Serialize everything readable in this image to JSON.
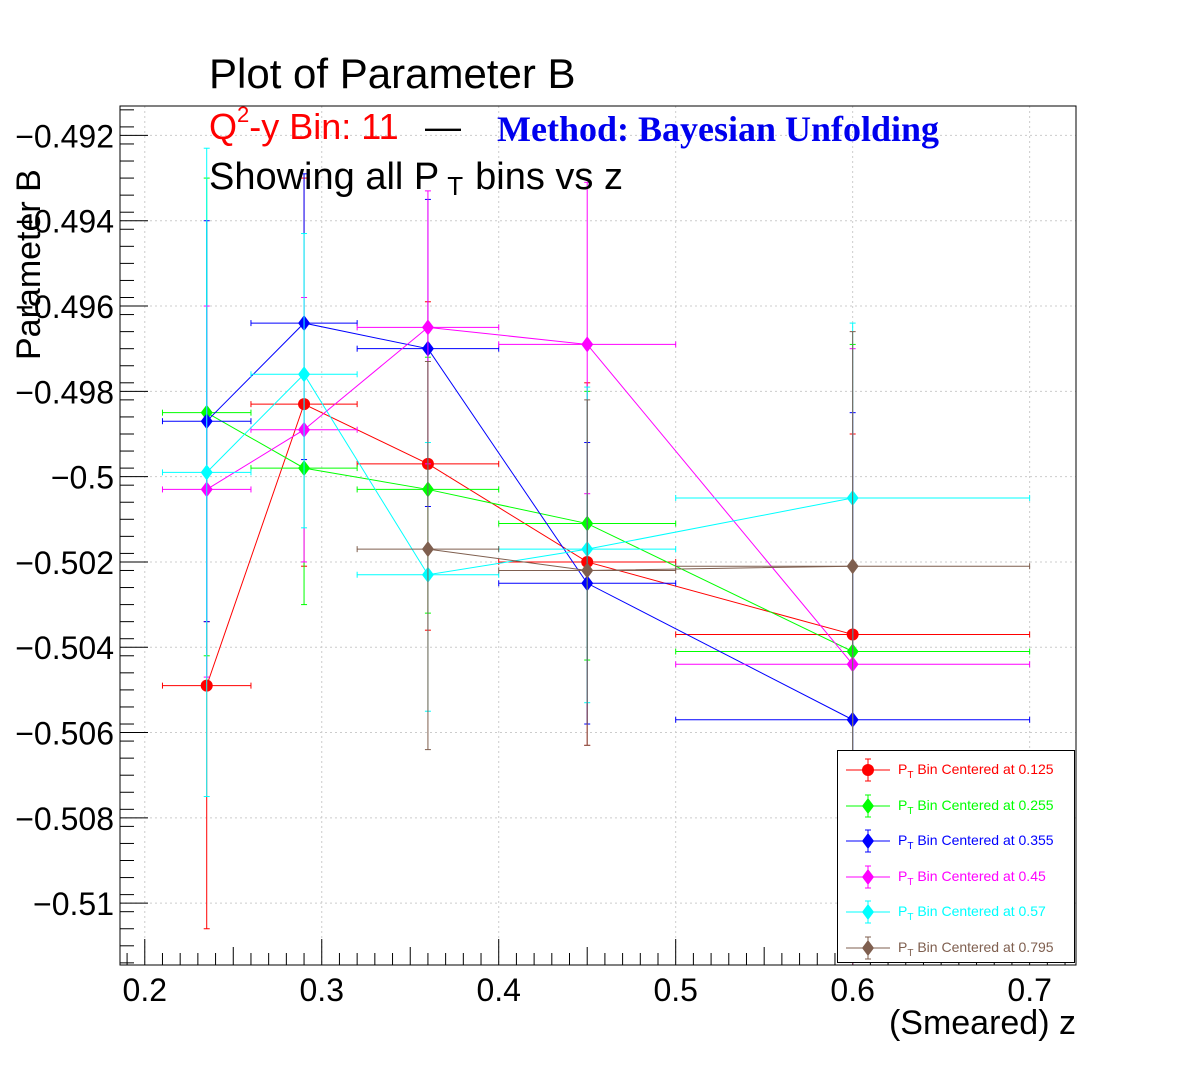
{
  "titles": {
    "main": "Plot of Parameter B",
    "bin_prefix": "Q",
    "bin_sup": "2",
    "bin_suffix": "-y Bin: 11",
    "dash": "—",
    "method": "Method: Bayesian Unfolding",
    "show_prefix": "Showing all P",
    "show_sub": "T",
    "show_suffix": "bins vs z"
  },
  "legend_prefix": "P",
  "legend_sub": "T",
  "chart_data": {
    "type": "scatter",
    "xlabel": "(Smeared) z",
    "ylabel": "Parameter B",
    "xlim": [
      0.186,
      0.7262
    ],
    "ylim": [
      -0.51145,
      -0.49131
    ],
    "x_ticks": [
      0.2,
      0.3,
      0.4,
      0.5,
      0.6,
      0.7
    ],
    "x_tick_labels": [
      "0.2",
      "0.3",
      "0.4",
      "0.5",
      "0.6",
      "0.7"
    ],
    "y_ticks": [
      -0.492,
      -0.494,
      -0.496,
      -0.498,
      -0.5,
      -0.502,
      -0.504,
      -0.506,
      -0.508,
      -0.51
    ],
    "y_tick_labels": [
      "−0.492",
      "−0.494",
      "−0.496",
      "−0.498",
      "−0.5",
      "−0.502",
      "−0.504",
      "−0.506",
      "−0.508",
      "−0.51"
    ],
    "grid": true,
    "legend_position": "bottom-right",
    "series": [
      {
        "name": "Bin Centered at 0.125",
        "color": "#ff0000",
        "marker": "circle",
        "points": [
          {
            "x": 0.235,
            "y": -0.5049,
            "xlo": 0.21,
            "xhi": 0.26,
            "ylo": -0.5106,
            "yhi": -0.5034
          },
          {
            "x": 0.29,
            "y": -0.4983,
            "xlo": 0.26,
            "xhi": 0.32,
            "ylo": -0.5021,
            "yhi": -0.493
          },
          {
            "x": 0.36,
            "y": -0.4997,
            "xlo": 0.32,
            "xhi": 0.4,
            "ylo": -0.5036,
            "yhi": -0.4959
          },
          {
            "x": 0.45,
            "y": -0.502,
            "xlo": 0.4,
            "xhi": 0.5,
            "ylo": -0.5063,
            "yhi": -0.4978
          },
          {
            "x": 0.6,
            "y": -0.5037,
            "xlo": 0.5,
            "xhi": 0.7,
            "ylo": -0.5115,
            "yhi": -0.499
          }
        ]
      },
      {
        "name": "Bin Centered at 0.255",
        "color": "#00ff00",
        "marker": "diamond",
        "points": [
          {
            "x": 0.235,
            "y": -0.4985,
            "xlo": 0.21,
            "xhi": 0.26,
            "ylo": -0.5042,
            "yhi": -0.493
          },
          {
            "x": 0.29,
            "y": -0.4998,
            "xlo": 0.26,
            "xhi": 0.32,
            "ylo": -0.503,
            "yhi": -0.4964
          },
          {
            "x": 0.36,
            "y": -0.5003,
            "xlo": 0.32,
            "xhi": 0.4,
            "ylo": -0.5032,
            "yhi": -0.4972
          },
          {
            "x": 0.45,
            "y": -0.5011,
            "xlo": 0.4,
            "xhi": 0.5,
            "ylo": -0.5043,
            "yhi": -0.498
          },
          {
            "x": 0.6,
            "y": -0.5041,
            "xlo": 0.5,
            "xhi": 0.7,
            "ylo": -0.5115,
            "yhi": -0.4969
          }
        ]
      },
      {
        "name": "Bin Centered at 0.355",
        "color": "#0000ff",
        "marker": "diamond",
        "points": [
          {
            "x": 0.235,
            "y": -0.4987,
            "xlo": 0.21,
            "xhi": 0.26,
            "ylo": -0.5034,
            "yhi": -0.494
          },
          {
            "x": 0.29,
            "y": -0.4964,
            "xlo": 0.26,
            "xhi": 0.32,
            "ylo": -0.4996,
            "yhi": -0.4929
          },
          {
            "x": 0.36,
            "y": -0.497,
            "xlo": 0.32,
            "xhi": 0.4,
            "ylo": -0.5007,
            "yhi": -0.4935
          },
          {
            "x": 0.45,
            "y": -0.5025,
            "xlo": 0.4,
            "xhi": 0.5,
            "ylo": -0.5058,
            "yhi": -0.4992
          },
          {
            "x": 0.6,
            "y": -0.5057,
            "xlo": 0.5,
            "xhi": 0.7,
            "ylo": -0.5115,
            "yhi": -0.4985
          }
        ]
      },
      {
        "name": "Bin Centered at 0.45",
        "color": "#ff00ff",
        "marker": "diamond",
        "points": [
          {
            "x": 0.235,
            "y": -0.5003,
            "xlo": 0.21,
            "xhi": 0.26,
            "ylo": -0.5047,
            "yhi": -0.496
          },
          {
            "x": 0.29,
            "y": -0.4989,
            "xlo": 0.26,
            "xhi": 0.32,
            "ylo": -0.502,
            "yhi": -0.4958
          },
          {
            "x": 0.36,
            "y": -0.4965,
            "xlo": 0.32,
            "xhi": 0.4,
            "ylo": -0.4997,
            "yhi": -0.4933
          },
          {
            "x": 0.45,
            "y": -0.4969,
            "xlo": 0.4,
            "xhi": 0.5,
            "ylo": -0.5004,
            "yhi": -0.4931
          },
          {
            "x": 0.6,
            "y": -0.5044,
            "xlo": 0.5,
            "xhi": 0.7,
            "ylo": -0.5115,
            "yhi": -0.497
          }
        ]
      },
      {
        "name": "Bin Centered at 0.57",
        "color": "#00ffff",
        "marker": "diamond",
        "points": [
          {
            "x": 0.235,
            "y": -0.4999,
            "xlo": 0.21,
            "xhi": 0.26,
            "ylo": -0.5075,
            "yhi": -0.4923
          },
          {
            "x": 0.29,
            "y": -0.4976,
            "xlo": 0.26,
            "xhi": 0.32,
            "ylo": -0.5012,
            "yhi": -0.4943
          },
          {
            "x": 0.36,
            "y": -0.5023,
            "xlo": 0.32,
            "xhi": 0.4,
            "ylo": -0.5055,
            "yhi": -0.4992
          },
          {
            "x": 0.45,
            "y": -0.5017,
            "xlo": 0.4,
            "xhi": 0.5,
            "ylo": -0.5053,
            "yhi": -0.4979
          },
          {
            "x": 0.6,
            "y": -0.5005,
            "xlo": 0.5,
            "xhi": 0.7,
            "ylo": -0.508,
            "yhi": -0.4964
          }
        ]
      },
      {
        "name": "Bin Centered at 0.795",
        "color": "#7f5f4f",
        "marker": "diamond",
        "points": [
          {
            "x": 0.36,
            "y": -0.5017,
            "xlo": 0.32,
            "xhi": 0.4,
            "ylo": -0.5064,
            "yhi": -0.4973
          },
          {
            "x": 0.45,
            "y": -0.5022,
            "xlo": 0.4,
            "xhi": 0.5,
            "ylo": -0.5063,
            "yhi": -0.4982
          },
          {
            "x": 0.6,
            "y": -0.5021,
            "xlo": 0.5,
            "xhi": 0.7,
            "ylo": -0.5115,
            "yhi": -0.4966
          }
        ]
      }
    ]
  }
}
